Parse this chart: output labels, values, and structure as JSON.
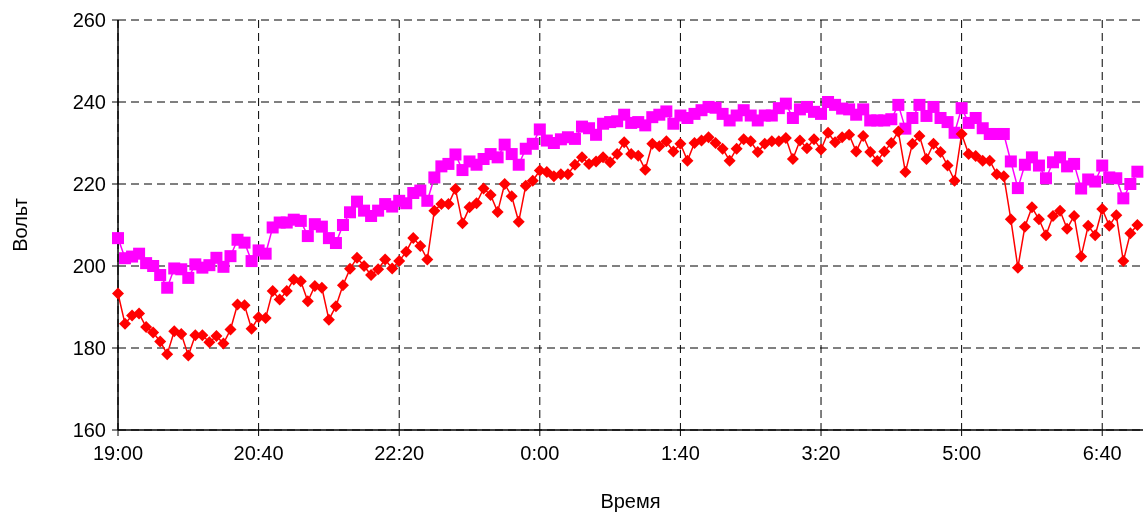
{
  "chart_data": {
    "type": "line",
    "xlabel": "Время",
    "ylabel": "Вольт",
    "x": [
      "2000-01-01T19:00",
      "2000-01-01T19:05",
      "2000-01-01T19:10",
      "2000-01-01T19:15",
      "2000-01-01T19:20",
      "2000-01-01T19:25",
      "2000-01-01T19:30",
      "2000-01-01T19:35",
      "2000-01-01T19:40",
      "2000-01-01T19:45",
      "2000-01-01T19:50",
      "2000-01-01T19:55",
      "2000-01-01T20:00",
      "2000-01-01T20:05",
      "2000-01-01T20:10",
      "2000-01-01T20:15",
      "2000-01-01T20:20",
      "2000-01-01T20:25",
      "2000-01-01T20:30",
      "2000-01-01T20:35",
      "2000-01-01T20:40",
      "2000-01-01T20:45",
      "2000-01-01T20:50",
      "2000-01-01T20:55",
      "2000-01-01T21:00",
      "2000-01-01T21:05",
      "2000-01-01T21:10",
      "2000-01-01T21:15",
      "2000-01-01T21:20",
      "2000-01-01T21:25",
      "2000-01-01T21:30",
      "2000-01-01T21:35",
      "2000-01-01T21:40",
      "2000-01-01T21:45",
      "2000-01-01T21:50",
      "2000-01-01T21:55",
      "2000-01-01T22:00",
      "2000-01-01T22:05",
      "2000-01-01T22:10",
      "2000-01-01T22:15",
      "2000-01-01T22:20",
      "2000-01-01T22:25",
      "2000-01-01T22:30",
      "2000-01-01T22:35",
      "2000-01-01T22:40",
      "2000-01-01T22:45",
      "2000-01-01T22:50",
      "2000-01-01T22:55",
      "2000-01-01T23:00",
      "2000-01-01T23:05",
      "2000-01-01T23:10",
      "2000-01-01T23:15",
      "2000-01-01T23:20",
      "2000-01-01T23:25",
      "2000-01-01T23:30",
      "2000-01-01T23:35",
      "2000-01-01T23:40",
      "2000-01-01T23:45",
      "2000-01-01T23:50",
      "2000-01-01T23:55",
      "2000-01-02T00:00",
      "2000-01-02T00:05",
      "2000-01-02T00:10",
      "2000-01-02T00:15",
      "2000-01-02T00:20",
      "2000-01-02T00:25",
      "2000-01-02T00:30",
      "2000-01-02T00:35",
      "2000-01-02T00:40",
      "2000-01-02T00:45",
      "2000-01-02T00:50",
      "2000-01-02T00:55",
      "2000-01-02T01:00",
      "2000-01-02T01:05",
      "2000-01-02T01:10",
      "2000-01-02T01:15",
      "2000-01-02T01:20",
      "2000-01-02T01:25",
      "2000-01-02T01:30",
      "2000-01-02T01:35",
      "2000-01-02T01:40",
      "2000-01-02T01:45",
      "2000-01-02T01:50",
      "2000-01-02T01:55",
      "2000-01-02T02:00",
      "2000-01-02T02:05",
      "2000-01-02T02:10",
      "2000-01-02T02:15",
      "2000-01-02T02:20",
      "2000-01-02T02:25",
      "2000-01-02T02:30",
      "2000-01-02T02:35",
      "2000-01-02T02:40",
      "2000-01-02T02:45",
      "2000-01-02T02:50",
      "2000-01-02T02:55",
      "2000-01-02T03:00",
      "2000-01-02T03:05",
      "2000-01-02T03:10",
      "2000-01-02T03:15",
      "2000-01-02T03:20",
      "2000-01-02T03:25",
      "2000-01-02T03:30",
      "2000-01-02T03:35",
      "2000-01-02T03:40",
      "2000-01-02T03:45",
      "2000-01-02T03:50",
      "2000-01-02T03:55",
      "2000-01-02T04:00",
      "2000-01-02T04:05",
      "2000-01-02T04:10",
      "2000-01-02T04:15",
      "2000-01-02T04:20",
      "2000-01-02T04:25",
      "2000-01-02T04:30",
      "2000-01-02T04:35",
      "2000-01-02T04:40",
      "2000-01-02T04:45",
      "2000-01-02T04:50",
      "2000-01-02T04:55",
      "2000-01-02T05:00",
      "2000-01-02T05:05",
      "2000-01-02T05:10",
      "2000-01-02T05:15",
      "2000-01-02T05:20",
      "2000-01-02T05:25",
      "2000-01-02T05:30",
      "2000-01-02T05:35",
      "2000-01-02T05:40",
      "2000-01-02T05:45",
      "2000-01-02T05:50",
      "2000-01-02T05:55",
      "2000-01-02T06:00",
      "2000-01-02T06:05",
      "2000-01-02T06:10",
      "2000-01-02T06:15",
      "2000-01-02T06:20",
      "2000-01-02T06:25",
      "2000-01-02T06:30",
      "2000-01-02T06:35",
      "2000-01-02T06:40",
      "2000-01-02T06:45",
      "2000-01-02T06:50",
      "2000-01-02T06:55",
      "2000-01-02T07:00",
      "2000-01-02T07:05"
    ],
    "series": [
      {
        "color": "#ff00ff",
        "marker": "square",
        "values": [
          206.8,
          201.9,
          202.3,
          203,
          200.7,
          200,
          197.8,
          194.7,
          199.4,
          199.2,
          197.1,
          200.4,
          199.6,
          200.2,
          202,
          199.8,
          202.4,
          206.4,
          205.7,
          201.2,
          203.8,
          203,
          209.4,
          210.6,
          210.6,
          211.3,
          211,
          207.3,
          210.2,
          209.6,
          206.8,
          205.6,
          210,
          213.1,
          215.7,
          213.5,
          212.2,
          213.5,
          215.1,
          214.5,
          215.9,
          215.3,
          217.8,
          218.4,
          215.9,
          221.6,
          224.3,
          224.9,
          227.2,
          223.4,
          225.5,
          224.7,
          226.1,
          227.3,
          226.5,
          229.6,
          227.3,
          224.7,
          228.6,
          229.8,
          233.3,
          230.6,
          230,
          230.9,
          231.4,
          231,
          234,
          233.6,
          232,
          234.7,
          235.1,
          235.3,
          236.9,
          234.9,
          235.1,
          234.3,
          236.3,
          236.9,
          237.7,
          234.7,
          236.7,
          236.1,
          237.1,
          238,
          238.8,
          238.6,
          237.1,
          235.5,
          236.7,
          238,
          236.7,
          235.5,
          236.7,
          236.7,
          238.5,
          239.6,
          236.1,
          238.2,
          238.8,
          237.6,
          237.1,
          240,
          239.3,
          238.4,
          238.2,
          236.9,
          238.2,
          235.5,
          235.5,
          235.5,
          235.8,
          239.3,
          233.5,
          236.1,
          239.3,
          236.6,
          238.8,
          236.1,
          235.1,
          232.5,
          238.5,
          234.9,
          236.1,
          233.6,
          232.2,
          232.2,
          232.2,
          225.5,
          219,
          224.7,
          226.5,
          224.5,
          221.4,
          225.3,
          226.5,
          224.3,
          224.9,
          218.9,
          221.1,
          220.6,
          224.5,
          221.6,
          221.4,
          216.5,
          220,
          223
        ]
      },
      {
        "color": "#ff0000",
        "marker": "diamond",
        "values": [
          193.3,
          185.9,
          187.9,
          188.4,
          185.1,
          183.8,
          181.6,
          178.5,
          184.1,
          183.4,
          178.2,
          183.1,
          183.1,
          181.4,
          182.9,
          181.1,
          184.5,
          190.6,
          190.4,
          184.7,
          187.5,
          187.3,
          193.9,
          191.8,
          193.9,
          196.7,
          196.3,
          191.4,
          195.1,
          194.7,
          186.9,
          190.2,
          195.3,
          199.3,
          202,
          200,
          197.8,
          199.2,
          201.6,
          199.4,
          201.2,
          203.5,
          206.8,
          204.9,
          201.6,
          213.5,
          215.1,
          215.1,
          218.8,
          210.4,
          214.3,
          215.3,
          218.9,
          217.3,
          213.2,
          220,
          217,
          210.8,
          219.6,
          220.8,
          223.3,
          222.9,
          221.9,
          222.4,
          222.4,
          224.7,
          226.5,
          224.9,
          225.5,
          226.5,
          225.3,
          227.3,
          230.2,
          227.3,
          226.9,
          223.5,
          229.8,
          229.2,
          230.4,
          227.9,
          229.8,
          225.7,
          230,
          230.6,
          231.4,
          230,
          228.6,
          225.7,
          228.6,
          230.9,
          230.4,
          227.8,
          229.8,
          230.4,
          230.4,
          231.2,
          226.1,
          230.6,
          228.7,
          230.9,
          228.4,
          232.5,
          230.2,
          231.4,
          232,
          227.9,
          231.7,
          227.8,
          225.6,
          227.9,
          230,
          232.8,
          222.9,
          229.8,
          231.7,
          226.1,
          229.8,
          227.8,
          224.5,
          220.8,
          232.2,
          227.3,
          226.8,
          225.7,
          225.7,
          222.4,
          221.9,
          211.4,
          199.6,
          209.6,
          214.3,
          211.4,
          207.5,
          212.2,
          213.5,
          209.1,
          212.2,
          202.3,
          209.8,
          207.5,
          213.9,
          209.8,
          212.4,
          201.2,
          208,
          210
        ]
      }
    ],
    "xlim": [
      "2000-01-01T19:00",
      "2000-01-02T07:09"
    ],
    "xticks": [
      {
        "value": "2000-01-01T19:00",
        "label": "19:00"
      },
      {
        "value": "2000-01-01T20:40",
        "label": "20:40"
      },
      {
        "value": "2000-01-01T22:20",
        "label": "22:20"
      },
      {
        "value": "2000-01-02T00:00",
        "label": "0:00"
      },
      {
        "value": "2000-01-02T01:40",
        "label": "1:40"
      },
      {
        "value": "2000-01-02T03:20",
        "label": "3:20"
      },
      {
        "value": "2000-01-02T05:00",
        "label": "5:00"
      },
      {
        "value": "2000-01-02T06:40",
        "label": "6:40"
      }
    ],
    "ylim": [
      160,
      260
    ],
    "yticks": [
      160,
      180,
      200,
      220,
      240,
      260
    ],
    "grid": true,
    "line_style": "solid"
  }
}
